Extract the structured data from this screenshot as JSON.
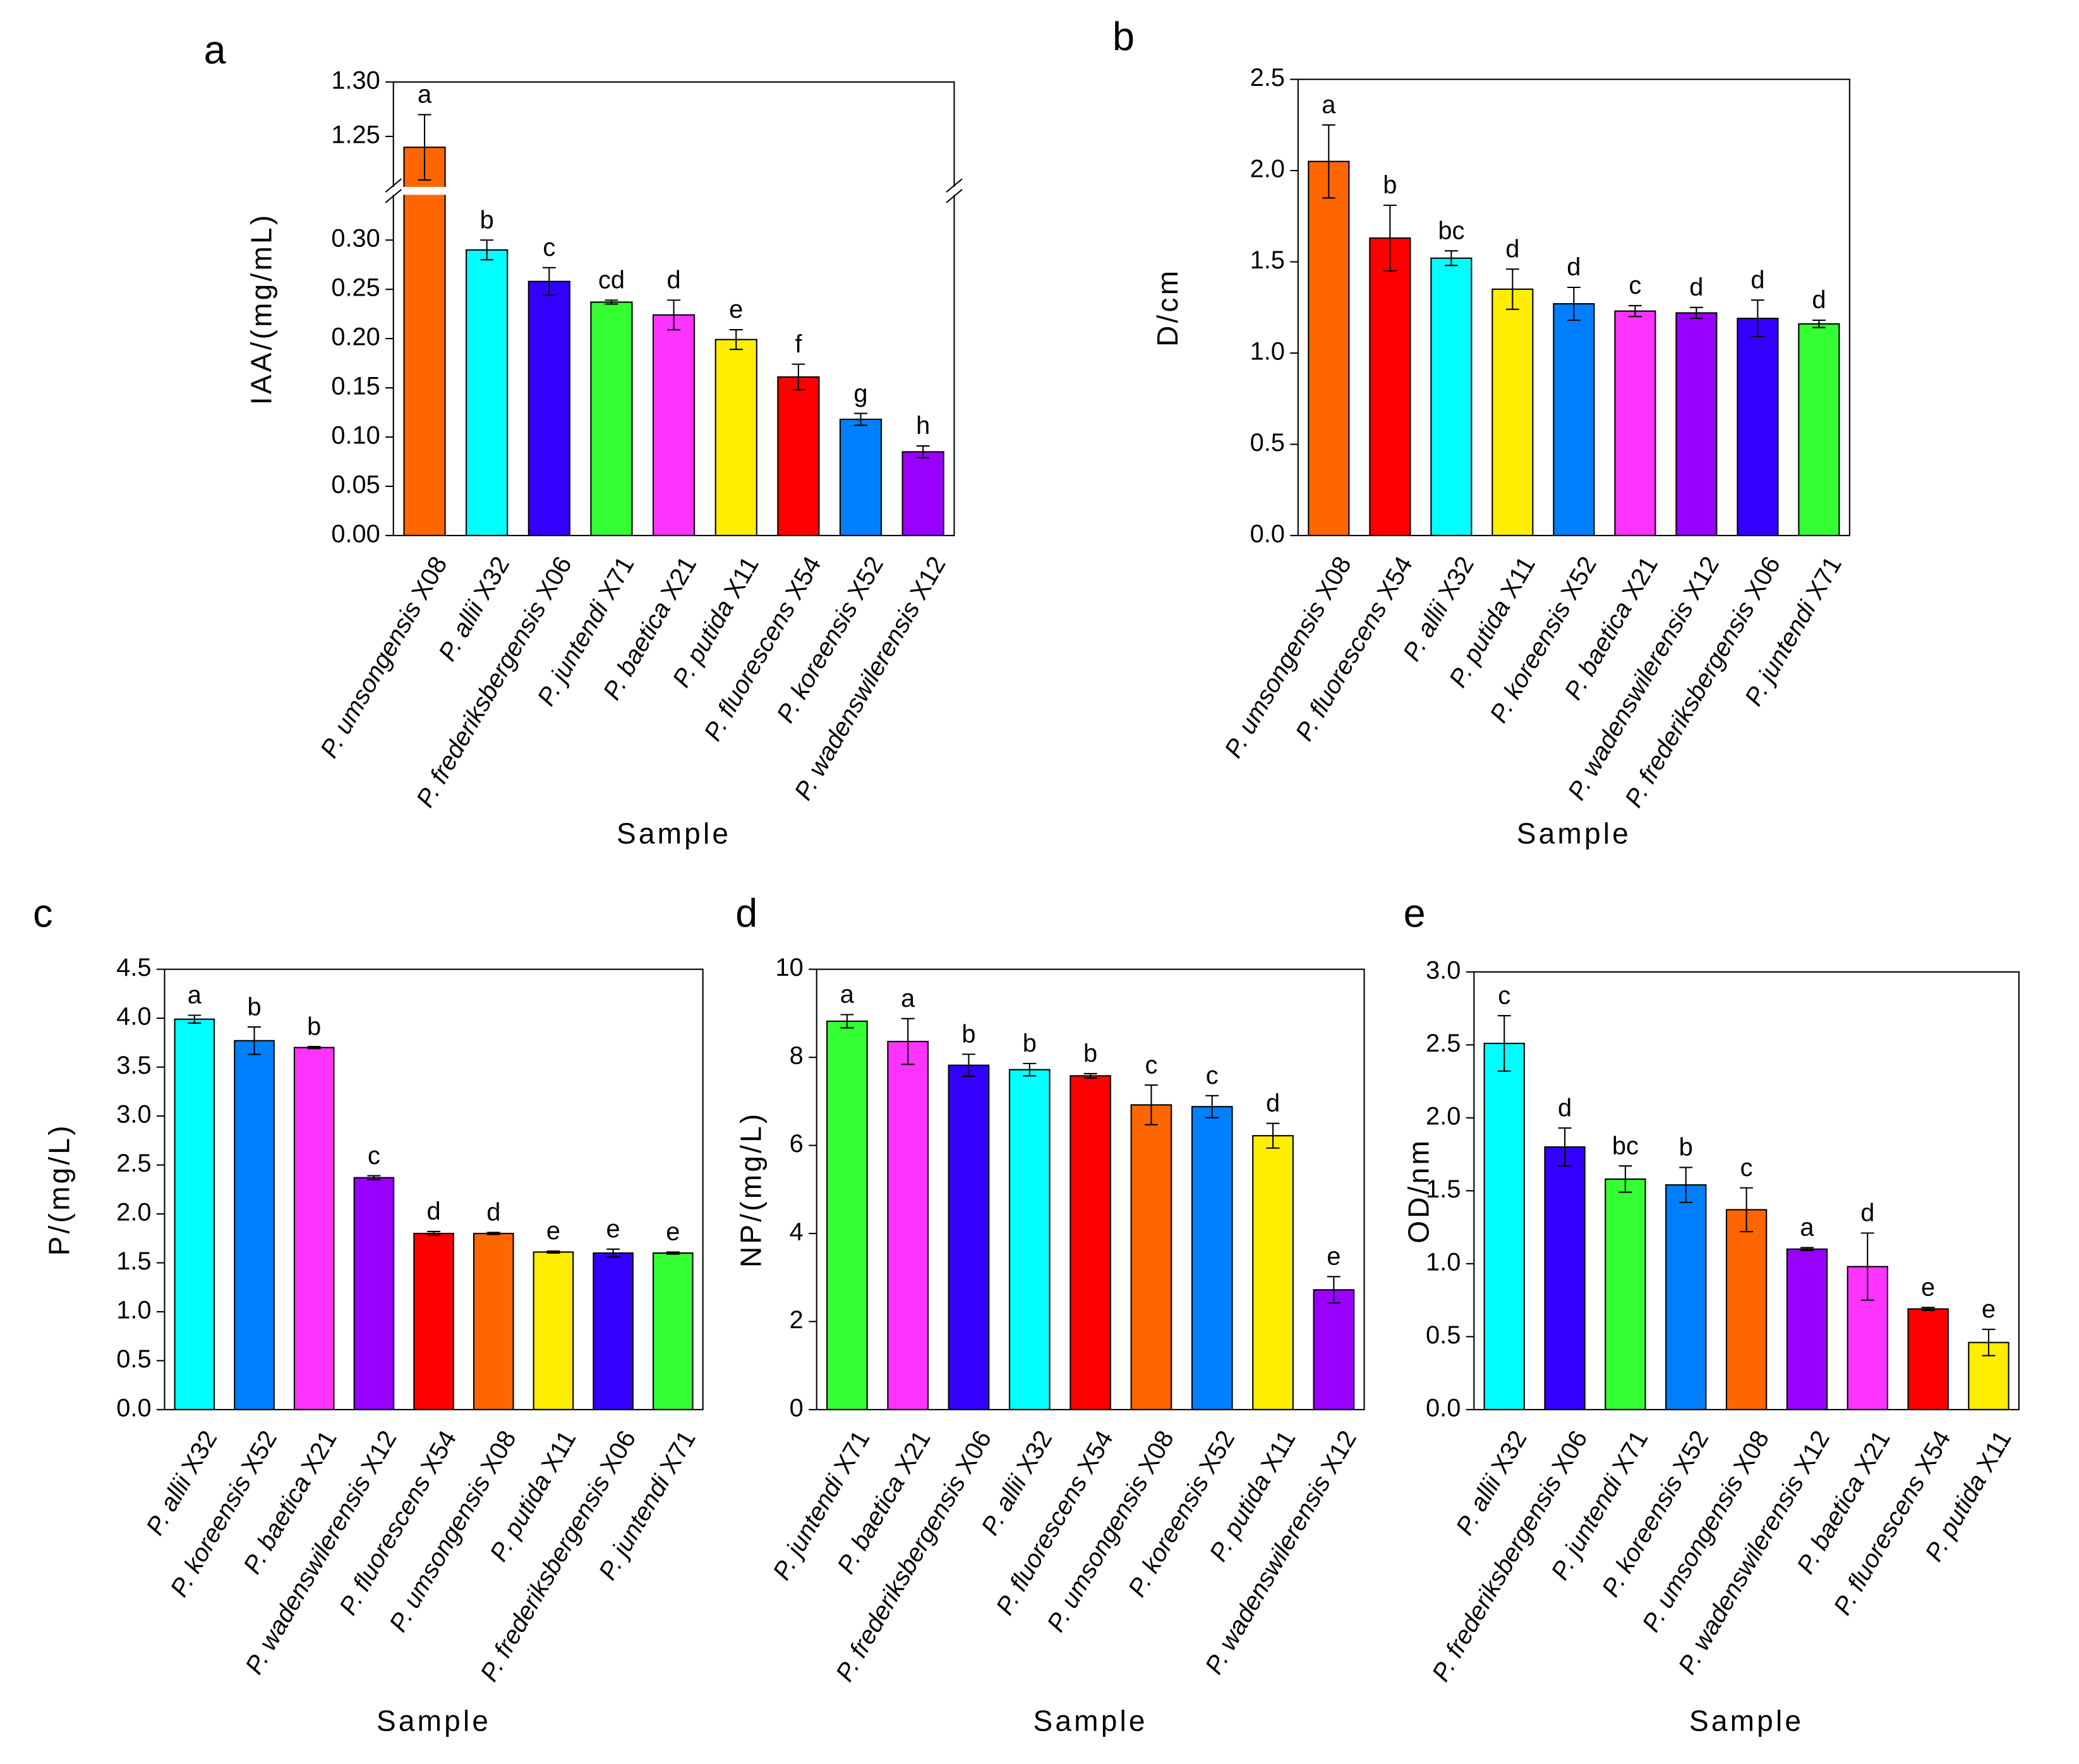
{
  "chart_data": [
    {
      "type": "bar",
      "panel_label": "a",
      "ylabel": "IAA/(mg/mL)",
      "xlabel": "Sample",
      "categories": [
        "P. umsongensis X08",
        "P. allii X32",
        "P. frederiksbergensis X06",
        "P. juntendi X71",
        "P. baetica X21",
        "P. putida X11",
        "P. fluorescens X54",
        "P. koreensis X52",
        "P. wadenswilerensis X12"
      ],
      "values": [
        1.24,
        0.29,
        0.258,
        0.237,
        0.224,
        0.199,
        0.161,
        0.118,
        0.085
      ],
      "errors": [
        0.03,
        0.01,
        0.014,
        0.002,
        0.015,
        0.01,
        0.013,
        0.006,
        0.006
      ],
      "letters": [
        "a",
        "b",
        "c",
        "cd",
        "d",
        "e",
        "f",
        "g",
        "h"
      ],
      "colors": [
        "#ff6600",
        "#00ffff",
        "#3300ff",
        "#33ff33",
        "#ff33ff",
        "#ffee00",
        "#ff0000",
        "#0080ff",
        "#9900ff"
      ],
      "ylim": [
        0,
        1.3
      ],
      "ybreak": [
        0.35,
        1.2
      ],
      "yticks": [
        {
          "value": 0,
          "label": "0.00"
        },
        0.05,
        {
          "value": 0.1,
          "label": "0.10"
        },
        0.15,
        {
          "value": 0.2,
          "label": "0.20"
        },
        0.25,
        {
          "value": 0.3,
          "label": "0.30"
        },
        1.25,
        {
          "value": 1.3,
          "label": "1.30"
        }
      ]
    },
    {
      "type": "bar",
      "panel_label": "b",
      "ylabel": "D/cm",
      "xlabel": "Sample",
      "categories": [
        "P. umsongensis X08",
        "P. fluorescens X54",
        "P. allii X32",
        "P. putida X11",
        "P. koreensis X52",
        "P. baetica X21",
        "P. wadenswilerensis X12",
        "P. frederiksbergensis X06",
        "P. juntendi X71"
      ],
      "values": [
        2.05,
        1.63,
        1.52,
        1.35,
        1.27,
        1.23,
        1.22,
        1.19,
        1.16
      ],
      "errors": [
        0.2,
        0.18,
        0.04,
        0.11,
        0.09,
        0.03,
        0.03,
        0.1,
        0.02
      ],
      "letters": [
        "a",
        "b",
        "bc",
        "d",
        "d",
        "c",
        "d",
        "d",
        "d"
      ],
      "colors": [
        "#ff6600",
        "#ff0000",
        "#00ffff",
        "#ffee00",
        "#0080ff",
        "#ff33ff",
        "#9900ff",
        "#3300ff",
        "#33ff33"
      ],
      "ylim": [
        0,
        2.5
      ],
      "yticks": [
        {
          "value": 0,
          "label": "0.0"
        },
        0.5,
        {
          "value": 1,
          "label": "1.0"
        },
        1.5,
        {
          "value": 2,
          "label": "2.0"
        },
        2.5
      ]
    },
    {
      "type": "bar",
      "panel_label": "c",
      "ylabel": "P/(mg/L)",
      "xlabel": "Sample",
      "categories": [
        "P. allii X32",
        "P. koreensis X52",
        "P. baetica X21",
        "P. wadenswilerensis X12",
        "P. fluorescens X54",
        "P. umsongensis X08",
        "P. putida X11",
        "P. frederiksbergensis X06",
        "P. juntendi X71"
      ],
      "values": [
        3.99,
        3.77,
        3.7,
        2.37,
        1.8,
        1.8,
        1.61,
        1.6,
        1.6
      ],
      "errors": [
        0.04,
        0.14,
        0.01,
        0.02,
        0.02,
        0.01,
        0.01,
        0.04,
        0.01
      ],
      "letters": [
        "a",
        "b",
        "b",
        "c",
        "d",
        "d",
        "e",
        "e",
        "e"
      ],
      "colors": [
        "#00ffff",
        "#0080ff",
        "#ff33ff",
        "#9900ff",
        "#ff0000",
        "#ff6600",
        "#ffee00",
        "#3300ff",
        "#33ff33"
      ],
      "ylim": [
        0,
        4.5
      ],
      "yticks": [
        {
          "value": 0,
          "label": "0.0"
        },
        0.5,
        {
          "value": 1,
          "label": "1.0"
        },
        1.5,
        {
          "value": 2,
          "label": "2.0"
        },
        2.5,
        {
          "value": 3,
          "label": "3.0"
        },
        3.5,
        {
          "value": 4,
          "label": "4.0"
        },
        4.5
      ]
    },
    {
      "type": "bar",
      "panel_label": "d",
      "ylabel": "NP/(mg/L)",
      "xlabel": "Sample",
      "categories": [
        "P. juntendi X71",
        "P. baetica X21",
        "P. frederiksbergensis X06",
        "P. allii X32",
        "P. fluorescens X54",
        "P. umsongensis X08",
        "P. koreensis X52",
        "P. putida X11",
        "P. wadenswilerensis X12"
      ],
      "values": [
        8.82,
        8.36,
        7.82,
        7.72,
        7.58,
        6.92,
        6.88,
        6.22,
        2.72
      ],
      "errors": [
        0.15,
        0.52,
        0.25,
        0.14,
        0.05,
        0.45,
        0.25,
        0.28,
        0.3
      ],
      "letters": [
        "a",
        "a",
        "b",
        "b",
        "b",
        "c",
        "c",
        "d",
        "e"
      ],
      "colors": [
        "#33ff33",
        "#ff33ff",
        "#3300ff",
        "#00ffff",
        "#ff0000",
        "#ff6600",
        "#0080ff",
        "#ffee00",
        "#9900ff"
      ],
      "ylim": [
        0,
        10
      ],
      "yticks": [
        0,
        2,
        4,
        6,
        8,
        10
      ]
    },
    {
      "type": "bar",
      "panel_label": "e",
      "ylabel": "OD/nm",
      "xlabel": "Sample",
      "categories": [
        "P. allii X32",
        "P. frederiksbergensis X06",
        "P. juntendi X71",
        "P. koreensis X52",
        "P. umsongensis X08",
        "P. wadenswilerensis X12",
        "P. baetica X21",
        "P. fluorescens X54",
        "P. putida X11"
      ],
      "values": [
        2.51,
        1.8,
        1.58,
        1.54,
        1.37,
        1.1,
        0.98,
        0.69,
        0.46
      ],
      "errors": [
        0.19,
        0.13,
        0.09,
        0.12,
        0.15,
        0.01,
        0.23,
        0.01,
        0.09
      ],
      "letters": [
        "c",
        "d",
        "bc",
        "b",
        "c",
        "a",
        "d",
        "e",
        "e"
      ],
      "colors": [
        "#00ffff",
        "#3300ff",
        "#33ff33",
        "#0080ff",
        "#ff6600",
        "#9900ff",
        "#ff33ff",
        "#ff0000",
        "#ffee00"
      ],
      "ylim": [
        0,
        3
      ],
      "yticks": [
        {
          "value": 0,
          "label": "0.0"
        },
        0.5,
        {
          "value": 1,
          "label": "1.0"
        },
        1.5,
        {
          "value": 2,
          "label": "2.0"
        },
        2.5,
        {
          "value": 3,
          "label": "3.0"
        }
      ]
    }
  ]
}
